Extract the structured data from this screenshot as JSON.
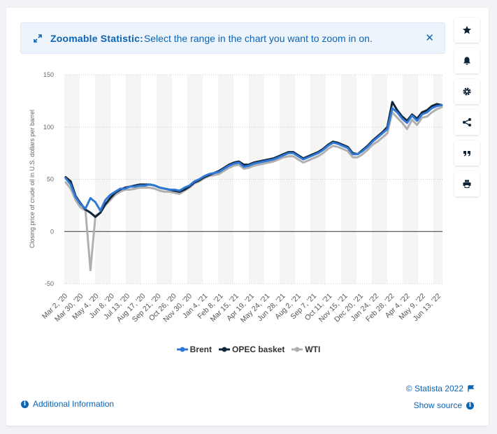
{
  "banner": {
    "title": "Zoomable Statistic:",
    "text": "Select the range in the chart you want to zoom in on.",
    "close_icon": "close-icon",
    "expand_icon": "expand-icon"
  },
  "toolbar": {
    "items": [
      {
        "name": "favorite-button",
        "icon": "star-icon"
      },
      {
        "name": "notification-button",
        "icon": "bell-icon"
      },
      {
        "name": "settings-button",
        "icon": "gear-icon"
      },
      {
        "name": "share-button",
        "icon": "share-icon"
      },
      {
        "name": "cite-button",
        "icon": "quote-icon"
      },
      {
        "name": "print-button",
        "icon": "print-icon"
      }
    ]
  },
  "footer": {
    "copyright": "© Statista 2022",
    "show_source": "Show source",
    "additional_info": "Additional Information"
  },
  "colors": {
    "accent": "#0b64b4",
    "brent": "#2f78d6",
    "opec": "#0f2437",
    "wti": "#b0b0b0"
  },
  "chart_data": {
    "type": "line",
    "ylabel": "Closing price of crude oil in U.S. dollars per barrel",
    "ylim": [
      -50,
      150
    ],
    "yticks": [
      150,
      100,
      50,
      0,
      -50
    ],
    "grid": true,
    "legend_position": "bottom",
    "x_tick_labels": [
      "Mar 2, '20",
      "Mar 30, '20",
      "May 4, '20",
      "Jun 8, '20",
      "Jul 13, '20",
      "Aug 17, '20",
      "Sep 21, '20",
      "Oct 26, '20",
      "Nov 30, '20",
      "Jan 4, '21",
      "Feb 8, '21",
      "Mar 15, '21",
      "Apr 19, '21",
      "May 24, '21",
      "Jun 28, '21",
      "Aug 2, '21",
      "Sep 7, '21",
      "Oct 11, '21",
      "Nov 15, '21",
      "Dec 20, '21",
      "Jan 24, '22",
      "Feb 28, '22",
      "Apr 4, '22",
      "May 9, '22",
      "Jun 13, '22"
    ],
    "series": [
      {
        "name": "Brent",
        "values": [
          51,
          45,
          33,
          26,
          22,
          32,
          28,
          20,
          30,
          35,
          38,
          41,
          41,
          43,
          43,
          44,
          44,
          45,
          44,
          42,
          41,
          40,
          40,
          39,
          42,
          44,
          48,
          50,
          53,
          55,
          56,
          57,
          60,
          63,
          65,
          66,
          62,
          63,
          65,
          66,
          67,
          68,
          69,
          71,
          73,
          75,
          75,
          72,
          69,
          71,
          73,
          75,
          78,
          82,
          85,
          84,
          82,
          80,
          74,
          74,
          77,
          81,
          86,
          90,
          94,
          98,
          118,
          114,
          108,
          104,
          111,
          106,
          112,
          114,
          118,
          120,
          121
        ]
      },
      {
        "name": "OPEC basket",
        "values": [
          52,
          48,
          34,
          27,
          21,
          18,
          14,
          18,
          26,
          32,
          37,
          40,
          42,
          43,
          44,
          45,
          45,
          45,
          44,
          42,
          41,
          40,
          39,
          38,
          40,
          43,
          47,
          49,
          52,
          54,
          56,
          58,
          61,
          64,
          66,
          67,
          64,
          64,
          66,
          67,
          68,
          69,
          70,
          72,
          74,
          76,
          76,
          73,
          70,
          72,
          74,
          76,
          79,
          83,
          86,
          85,
          83,
          81,
          75,
          74,
          78,
          82,
          87,
          91,
          95,
          100,
          124,
          116,
          110,
          106,
          112,
          108,
          114,
          116,
          120,
          122,
          121
        ]
      },
      {
        "name": "WTI",
        "values": [
          47,
          41,
          30,
          23,
          20,
          -37,
          15,
          18,
          25,
          30,
          35,
          38,
          40,
          40,
          41,
          42,
          42,
          42,
          41,
          39,
          38,
          38,
          37,
          36,
          39,
          42,
          46,
          48,
          51,
          53,
          54,
          55,
          58,
          61,
          63,
          64,
          60,
          61,
          63,
          64,
          65,
          66,
          67,
          69,
          71,
          72,
          72,
          69,
          66,
          68,
          70,
          72,
          75,
          79,
          82,
          81,
          79,
          77,
          71,
          71,
          74,
          78,
          83,
          86,
          90,
          94,
          114,
          109,
          104,
          98,
          107,
          102,
          109,
          110,
          114,
          117,
          119
        ]
      }
    ]
  }
}
